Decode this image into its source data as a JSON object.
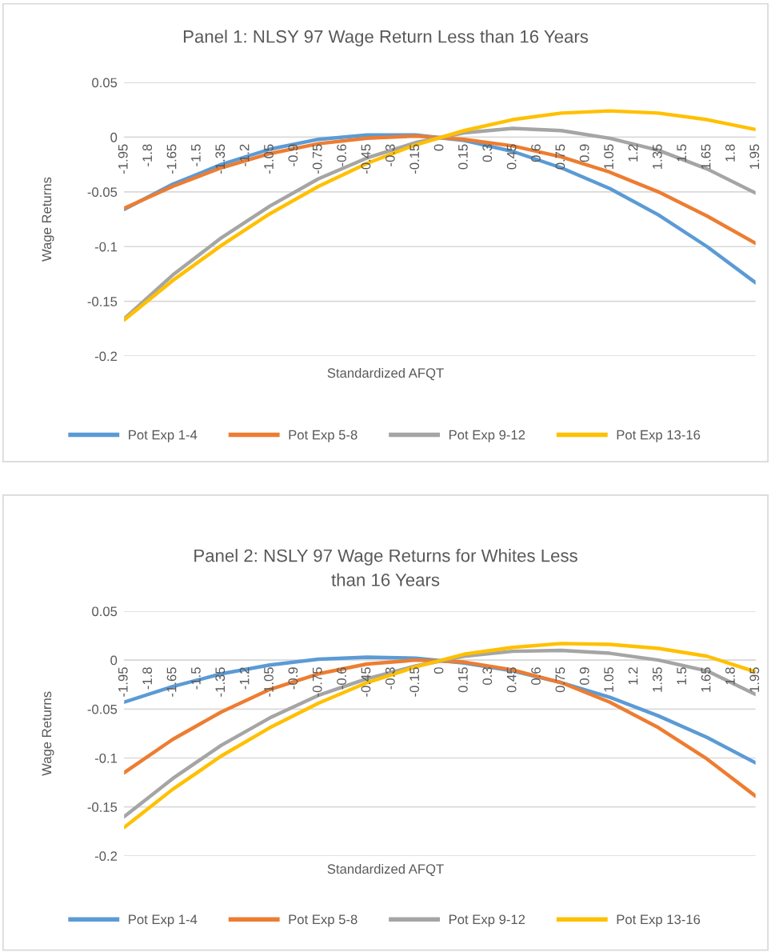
{
  "chart_data": [
    {
      "type": "line",
      "title": "Panel 1: NLSY 97 Wage Return Less than 16 Years",
      "xlabel": "Standardized AFQT",
      "ylabel": "Wage Returns",
      "x": [
        -1.95,
        -1.65,
        -1.35,
        -1.05,
        -0.75,
        -0.45,
        -0.15,
        0.15,
        0.45,
        0.75,
        1.05,
        1.35,
        1.65,
        1.95
      ],
      "xlim": [
        -1.95,
        1.95
      ],
      "xticks": [
        -1.95,
        -1.8,
        -1.65,
        -1.5,
        -1.35,
        -1.2,
        -1.05,
        -0.9,
        -0.75,
        -0.6,
        -0.45,
        -0.3,
        -0.15,
        0,
        0.15,
        0.3,
        0.45,
        0.6,
        0.75,
        0.9,
        1.05,
        1.2,
        1.35,
        1.5,
        1.65,
        1.8,
        1.95
      ],
      "ylim": [
        -0.2,
        0.05
      ],
      "yticks": [
        -0.2,
        -0.15,
        -0.1,
        -0.05,
        0,
        0.05
      ],
      "grid": "y",
      "legend": "bottom",
      "marker": "none",
      "line_style": "solid",
      "series": [
        {
          "name": "Pot Exp 1-4",
          "color": "#5b9bd5",
          "values": [
            -0.066,
            -0.043,
            -0.025,
            -0.011,
            -0.002,
            0.002,
            0.002,
            -0.003,
            -0.013,
            -0.028,
            -0.047,
            -0.071,
            -0.1,
            -0.133
          ]
        },
        {
          "name": "Pot Exp 5-8",
          "color": "#ed7d31",
          "values": [
            -0.065,
            -0.045,
            -0.028,
            -0.015,
            -0.006,
            -0.001,
            0.001,
            -0.002,
            -0.008,
            -0.018,
            -0.032,
            -0.05,
            -0.072,
            -0.097
          ]
        },
        {
          "name": "Pot Exp 9-12",
          "color": "#a5a5a5",
          "values": [
            -0.166,
            -0.126,
            -0.092,
            -0.063,
            -0.038,
            -0.019,
            -0.005,
            0.004,
            0.008,
            0.006,
            -0.001,
            -0.012,
            -0.029,
            -0.051
          ]
        },
        {
          "name": "Pot Exp 13-16",
          "color": "#ffc000",
          "values": [
            -0.167,
            -0.131,
            -0.099,
            -0.07,
            -0.045,
            -0.024,
            -0.007,
            0.006,
            0.016,
            0.022,
            0.024,
            0.022,
            0.016,
            0.007
          ]
        }
      ]
    },
    {
      "type": "line",
      "title": "Panel 2: NSLY 97 Wage Returns for Whites Less\nthan 16 Years",
      "xlabel": "Standardized AFQT",
      "ylabel": "Wage Returns",
      "x": [
        -1.95,
        -1.65,
        -1.35,
        -1.05,
        -0.75,
        -0.45,
        -0.15,
        0.15,
        0.45,
        0.75,
        1.05,
        1.35,
        1.65,
        1.95
      ],
      "xlim": [
        -1.95,
        1.95
      ],
      "xticks": [
        -1.95,
        -1.8,
        -1.65,
        -1.5,
        -1.35,
        -1.2,
        -1.05,
        -0.9,
        -0.75,
        -0.6,
        -0.45,
        -0.3,
        -0.15,
        0,
        0.15,
        0.3,
        0.45,
        0.6,
        0.75,
        0.9,
        1.05,
        1.2,
        1.35,
        1.5,
        1.65,
        1.8,
        1.95
      ],
      "ylim": [
        -0.2,
        0.05
      ],
      "yticks": [
        -0.2,
        -0.15,
        -0.1,
        -0.05,
        0,
        0.05
      ],
      "grid": "y",
      "legend": "bottom",
      "marker": "none",
      "line_style": "solid",
      "series": [
        {
          "name": "Pot Exp 1-4",
          "color": "#5b9bd5",
          "values": [
            -0.043,
            -0.027,
            -0.014,
            -0.005,
            0.001,
            0.003,
            0.002,
            -0.003,
            -0.011,
            -0.023,
            -0.038,
            -0.057,
            -0.079,
            -0.105
          ]
        },
        {
          "name": "Pot Exp 5-8",
          "color": "#ed7d31",
          "values": [
            -0.115,
            -0.081,
            -0.053,
            -0.03,
            -0.014,
            -0.004,
            0.0,
            -0.002,
            -0.01,
            -0.023,
            -0.043,
            -0.069,
            -0.101,
            -0.139
          ]
        },
        {
          "name": "Pot Exp 9-12",
          "color": "#a5a5a5",
          "values": [
            -0.16,
            -0.121,
            -0.087,
            -0.059,
            -0.036,
            -0.019,
            -0.006,
            0.004,
            0.009,
            0.01,
            0.007,
            0.0,
            -0.011,
            -0.035
          ]
        },
        {
          "name": "Pot Exp 13-16",
          "color": "#ffc000",
          "values": [
            -0.171,
            -0.132,
            -0.098,
            -0.069,
            -0.044,
            -0.023,
            -0.007,
            0.006,
            0.013,
            0.017,
            0.016,
            0.012,
            0.004,
            -0.012
          ]
        }
      ]
    }
  ]
}
